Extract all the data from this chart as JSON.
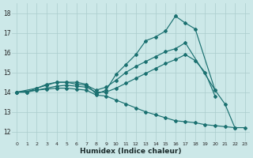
{
  "background_color": "#cce8e8",
  "grid_color": "#aacccc",
  "line_color": "#1a7070",
  "xlabel": "Humidex (Indice chaleur)",
  "xlim": [
    -0.5,
    23.5
  ],
  "ylim": [
    11.5,
    18.5
  ],
  "xticks": [
    0,
    1,
    2,
    3,
    4,
    5,
    6,
    7,
    8,
    9,
    10,
    11,
    12,
    13,
    14,
    15,
    16,
    17,
    18,
    19,
    20,
    21,
    22,
    23
  ],
  "yticks": [
    12,
    13,
    14,
    15,
    16,
    17,
    18
  ],
  "lines": [
    {
      "x": [
        0,
        1,
        2,
        3,
        4,
        5,
        6,
        7,
        8,
        9,
        10,
        11,
        12,
        13,
        14,
        15,
        16,
        17,
        18,
        20,
        21,
        22
      ],
      "y": [
        14.0,
        14.0,
        14.2,
        14.4,
        14.5,
        14.5,
        14.5,
        14.4,
        13.9,
        14.1,
        14.9,
        15.4,
        15.9,
        16.6,
        16.8,
        17.1,
        17.85,
        17.5,
        17.2,
        14.1,
        13.4,
        12.2
      ]
    },
    {
      "x": [
        0,
        2,
        3,
        4,
        5,
        6,
        7,
        8,
        9,
        10,
        11,
        12,
        13,
        14,
        15,
        16,
        17,
        20
      ],
      "y": [
        14.0,
        14.2,
        14.35,
        14.5,
        14.5,
        14.4,
        14.35,
        14.1,
        14.25,
        14.6,
        15.0,
        15.3,
        15.55,
        15.8,
        16.05,
        16.2,
        16.5,
        14.1
      ]
    },
    {
      "x": [
        0,
        2,
        3,
        4,
        5,
        6,
        7,
        8,
        9,
        10,
        11,
        12,
        13,
        14,
        15,
        16,
        17,
        18,
        19,
        20
      ],
      "y": [
        14.0,
        14.1,
        14.2,
        14.3,
        14.35,
        14.3,
        14.25,
        14.0,
        14.0,
        14.2,
        14.45,
        14.7,
        14.95,
        15.2,
        15.45,
        15.65,
        15.9,
        15.6,
        15.0,
        13.8
      ]
    },
    {
      "x": [
        0,
        1,
        2,
        3,
        4,
        5,
        6,
        7,
        8,
        9,
        10,
        11,
        12,
        13,
        14,
        15,
        16,
        17,
        18,
        19,
        20,
        21,
        22,
        23
      ],
      "y": [
        14.0,
        14.0,
        14.1,
        14.15,
        14.2,
        14.2,
        14.15,
        14.1,
        13.85,
        13.8,
        13.6,
        13.4,
        13.2,
        13.0,
        12.85,
        12.7,
        12.55,
        12.5,
        12.45,
        12.35,
        12.3,
        12.25,
        12.2,
        12.2
      ]
    }
  ]
}
